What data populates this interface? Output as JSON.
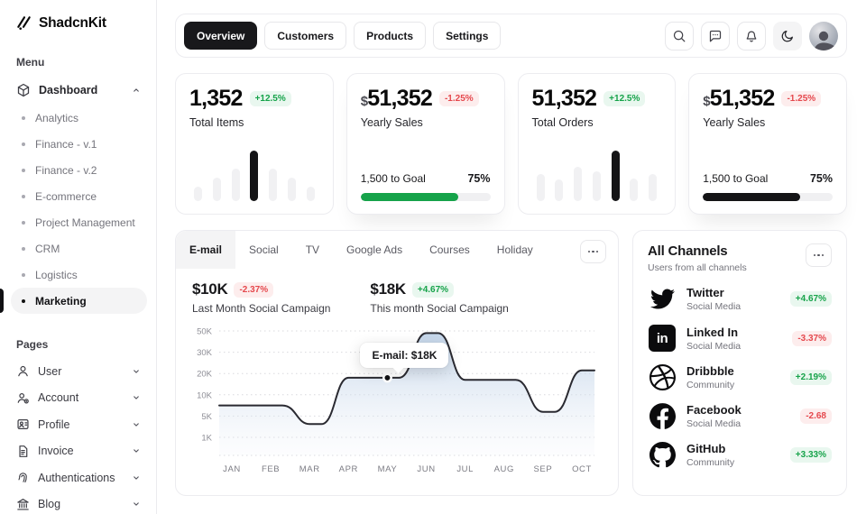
{
  "app": {
    "name": "ShadcnKit",
    "logo_icon": "double-slash-logo-icon"
  },
  "sidebar": {
    "menu_label": "Menu",
    "dashboard": {
      "label": "Dashboard",
      "icon": "package-icon",
      "expanded": true
    },
    "dashboard_items": [
      {
        "label": "Analytics",
        "active": false
      },
      {
        "label": "Finance - v.1",
        "active": false
      },
      {
        "label": "Finance - v.2",
        "active": false
      },
      {
        "label": "E-commerce",
        "active": false
      },
      {
        "label": "Project Management",
        "active": false
      },
      {
        "label": "CRM",
        "active": false
      },
      {
        "label": "Logistics",
        "active": false
      },
      {
        "label": "Marketing",
        "active": true
      }
    ],
    "pages_label": "Pages",
    "pages": [
      {
        "label": "User",
        "icon": "user-icon"
      },
      {
        "label": "Account",
        "icon": "user-gear-icon"
      },
      {
        "label": "Profile",
        "icon": "id-badge-icon"
      },
      {
        "label": "Invoice",
        "icon": "invoice-icon"
      },
      {
        "label": "Authentications",
        "icon": "fingerprint-icon"
      },
      {
        "label": "Blog",
        "icon": "landmark-icon"
      }
    ]
  },
  "topbar": {
    "tabs": [
      {
        "label": "Overview",
        "active": true
      },
      {
        "label": "Customers",
        "active": false
      },
      {
        "label": "Products",
        "active": false
      },
      {
        "label": "Settings",
        "active": false
      }
    ],
    "action_icons": [
      "search-icon",
      "message-icon",
      "bell-icon",
      "moon-icon"
    ],
    "avatar": "user-avatar-photo"
  },
  "stat_cards": [
    {
      "prefix": "",
      "value": "1,352",
      "badge": "+12.5%",
      "trend": "up",
      "label": "Total Items",
      "bars": [
        26,
        42,
        58,
        90,
        58,
        42,
        26
      ],
      "highlight_index": 3
    },
    {
      "prefix": "$",
      "value": "51,352",
      "badge": "-1.25%",
      "trend": "down",
      "label": "Yearly Sales",
      "goal_label": "1,500 to Goal",
      "goal_percent_label": "75%",
      "progress_percent": 75,
      "progress_color": "#16a34a"
    },
    {
      "prefix": "",
      "value": "51,352",
      "badge": "+12.5%",
      "trend": "up",
      "label": "Total Orders",
      "bars": [
        48,
        38,
        62,
        54,
        90,
        40,
        48
      ],
      "highlight_index": 4
    },
    {
      "prefix": "$",
      "value": "51,352",
      "badge": "-1.25%",
      "trend": "down",
      "label": "Yearly Sales",
      "goal_label": "1,500 to Goal",
      "goal_percent_label": "75%",
      "progress_percent": 75,
      "progress_color": "#141416"
    }
  ],
  "campaign": {
    "tabs": [
      {
        "label": "E-mail",
        "active": true
      },
      {
        "label": "Social",
        "active": false
      },
      {
        "label": "TV",
        "active": false
      },
      {
        "label": "Google Ads",
        "active": false
      },
      {
        "label": "Courses",
        "active": false
      },
      {
        "label": "Holiday",
        "active": false
      }
    ],
    "more_icon": "ellipsis-icon",
    "stats": [
      {
        "value": "$10K",
        "badge": "-2.37%",
        "trend": "down",
        "label": "Last Month Social Campaign"
      },
      {
        "value": "$18K",
        "badge": "+4.67%",
        "trend": "up",
        "label": "This month Social Campaign"
      }
    ]
  },
  "chart_data": {
    "type": "area",
    "x": [
      "JAN",
      "FEB",
      "MAR",
      "APR",
      "MAY",
      "JUN",
      "JUL",
      "AUG",
      "SEP",
      "OCT"
    ],
    "series": [
      {
        "name": "E-mail",
        "values": [
          7.5,
          7.5,
          3.5,
          18,
          18,
          48,
          17,
          17,
          6,
          21.5
        ]
      }
    ],
    "value_unit": "K",
    "yticks_k": [
      1,
      5,
      10,
      20,
      30,
      50
    ],
    "ytick_labels": [
      "1K",
      "5K",
      "10K",
      "20K",
      "30K",
      "50K"
    ],
    "grid": "dotted-horizontal",
    "legend": "none",
    "tooltip": {
      "label": "E-mail: $18K",
      "x": "MAY",
      "value_k": 18
    }
  },
  "channels": {
    "title": "All Channels",
    "subtitle": "Users from all channels",
    "more_icon": "ellipsis-icon",
    "items": [
      {
        "name": "Twitter",
        "category": "Social Media",
        "change": "+4.67%",
        "trend": "up",
        "icon": "twitter-icon",
        "icon_text": ""
      },
      {
        "name": "Linked In",
        "category": "Social Media",
        "change": "-3.37%",
        "trend": "down",
        "icon": "linkedin-icon",
        "icon_text": "in"
      },
      {
        "name": "Dribbble",
        "category": "Community",
        "change": "+2.19%",
        "trend": "up",
        "icon": "dribbble-icon",
        "icon_text": ""
      },
      {
        "name": "Facebook",
        "category": "Social Media",
        "change": "-2.68",
        "trend": "down",
        "icon": "facebook-icon",
        "icon_text": ""
      },
      {
        "name": "GitHub",
        "category": "Community",
        "change": "+3.33%",
        "trend": "up",
        "icon": "github-icon",
        "icon_text": ""
      }
    ]
  },
  "colors": {
    "positive_text": "#16a34a",
    "positive_bg": "#e9f7ef",
    "negative_text": "#e5484d",
    "negative_bg": "#fdeded",
    "active_tab_bg": "#18181b",
    "chart_line": "#2a2a31",
    "chart_fill_top": "#b9cee6",
    "chart_fill_bottom": "#eef2f8",
    "grid_line": "#d9d9de"
  }
}
